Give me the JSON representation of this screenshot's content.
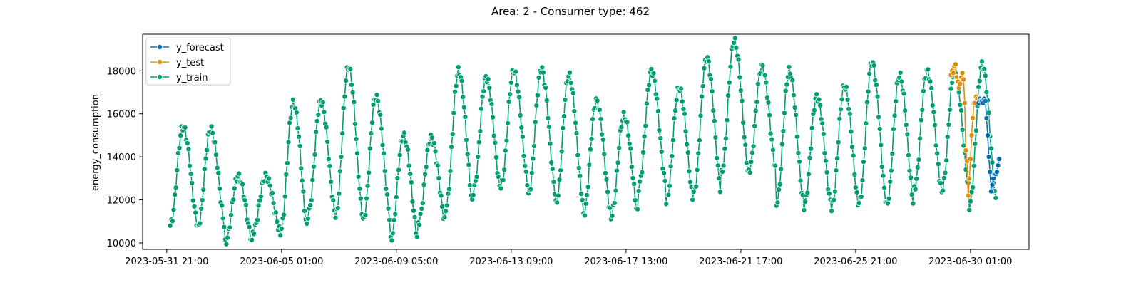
{
  "chart_data": {
    "type": "line",
    "title": "Area: 2 - Consumer type: 462",
    "xlabel": "",
    "ylabel": "energy_consumption",
    "x_range": [
      "2023-05-31 00:00",
      "2023-07-02 04:00"
    ],
    "ylim": [
      9700,
      19700
    ],
    "y_ticks": [
      10000,
      12000,
      14000,
      16000,
      18000
    ],
    "x_ticks": [
      "2023-05-31 21:00",
      "2023-06-05 01:00",
      "2023-06-09 05:00",
      "2023-06-13 09:00",
      "2023-06-17 13:00",
      "2023-06-21 17:00",
      "2023-06-25 21:00",
      "2023-06-30 01:00"
    ],
    "grid": false,
    "legend": {
      "placement": "top-left",
      "entries": [
        "y_forecast",
        "y_test",
        "y_train"
      ]
    },
    "series": [
      {
        "name": "y_forecast",
        "color": "#0173b2",
        "marker": "circle",
        "start": "2023-06-30 08:00",
        "step_hours": 1,
        "values": [
          16500,
          16700,
          16600,
          16600,
          16500,
          16700,
          16600,
          15800,
          15000,
          14000,
          13300,
          12400,
          12700,
          13000,
          13200,
          13200,
          13300,
          13600,
          13900
        ]
      },
      {
        "name": "y_test",
        "color": "#de8f05",
        "marker": "circle",
        "start": "2023-06-29 08:00",
        "step_hours": 1,
        "values": [
          17800,
          18000,
          17900,
          18200,
          18300,
          17700,
          17500,
          17200,
          17400,
          17700,
          17900,
          17600,
          16500,
          14300,
          13800,
          12200,
          13000,
          13900,
          15000,
          15800,
          16500,
          16500,
          16800,
          16700
        ]
      },
      {
        "name": "y_train",
        "color": "#029e73",
        "marker": "circle",
        "start": "2023-06-01 00:00",
        "step_hours": 1,
        "daily_min": [
          10800,
          10700,
          10000,
          10500,
          10500,
          11300,
          11200,
          11000,
          10100,
          10900,
          11600,
          12400,
          12600,
          12200,
          11800,
          11300,
          11200,
          12600,
          11900,
          12300,
          13200,
          13300,
          11800,
          11700,
          11600,
          11800,
          11700,
          12500,
          12400,
          11700
        ],
        "daily_max": [
          15400,
          15300,
          13100,
          13100,
          16500,
          16600,
          18200,
          16800,
          15000,
          14900,
          18000,
          17700,
          18000,
          18100,
          17800,
          16600,
          15900,
          18000,
          17200,
          18600,
          19400,
          18200,
          18000,
          16800,
          17300,
          18400,
          17800,
          18000,
          18000,
          18300
        ]
      }
    ]
  }
}
